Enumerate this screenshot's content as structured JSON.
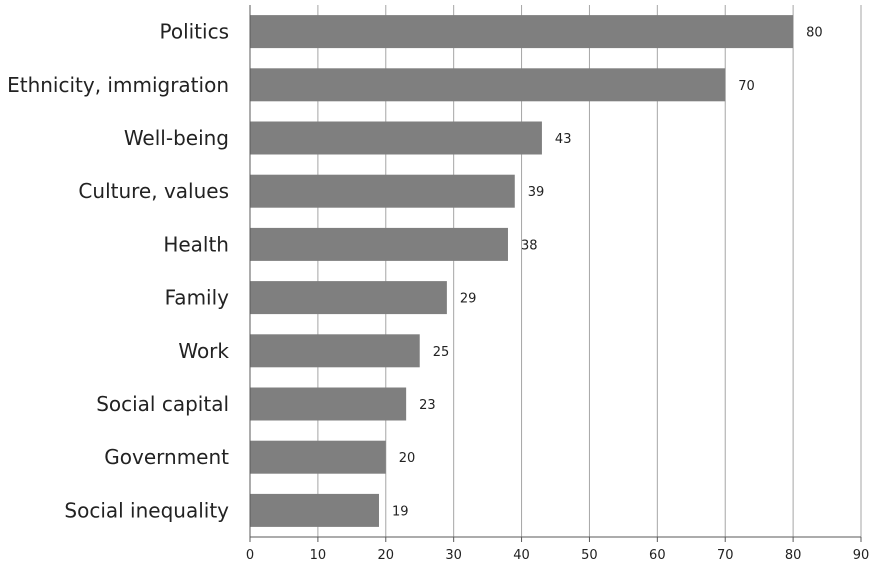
{
  "chart_data": {
    "type": "bar",
    "orientation": "horizontal",
    "categories": [
      "Politics",
      "Ethnicity, immigration",
      "Well-being",
      "Culture, values",
      "Health",
      "Family",
      "Work",
      "Social capital",
      "Government",
      "Social inequality"
    ],
    "values": [
      80,
      70,
      43,
      39,
      38,
      29,
      25,
      23,
      20,
      19
    ],
    "xlim": [
      0,
      90
    ],
    "xticks": [
      "0",
      "10",
      "20",
      "30",
      "40",
      "50",
      "60",
      "70",
      "80",
      "90"
    ],
    "grid": "vertical",
    "data_labels": [
      "80",
      "70",
      "43",
      "39",
      "38",
      "29",
      "25",
      "23",
      "20",
      "19"
    ],
    "bar_color": "#7f7f7f",
    "grid_color": "#a6a6a6"
  }
}
